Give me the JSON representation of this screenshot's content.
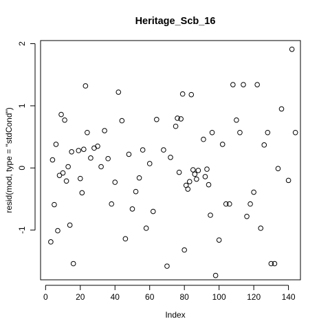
{
  "chart_data": {
    "type": "scatter",
    "title": "Heritage_Scb_16",
    "xlabel": "Index",
    "ylabel": "resid(mod, type = \"stdCond\")",
    "xlim": [
      -2.9,
      146.9
    ],
    "ylim": [
      -1.8,
      2.05
    ],
    "xticks": [
      0,
      20,
      40,
      60,
      80,
      100,
      120,
      140
    ],
    "yticks": [
      -1,
      0,
      1,
      2
    ],
    "grid": false,
    "legend": "none",
    "marker": "open-circle",
    "points": [
      {
        "x": 3,
        "y": -1.19
      },
      {
        "x": 4,
        "y": 0.13
      },
      {
        "x": 5,
        "y": -0.59
      },
      {
        "x": 6,
        "y": 0.38
      },
      {
        "x": 7,
        "y": -1.01
      },
      {
        "x": 8,
        "y": -0.12
      },
      {
        "x": 9,
        "y": 0.86
      },
      {
        "x": 10,
        "y": -0.08
      },
      {
        "x": 11,
        "y": 0.77
      },
      {
        "x": 12,
        "y": -0.21
      },
      {
        "x": 13,
        "y": 0.02
      },
      {
        "x": 14,
        "y": -0.92
      },
      {
        "x": 15,
        "y": 0.26
      },
      {
        "x": 16,
        "y": -1.54
      },
      {
        "x": 19,
        "y": 0.28
      },
      {
        "x": 20,
        "y": -0.17
      },
      {
        "x": 21,
        "y": -0.4
      },
      {
        "x": 22,
        "y": 0.3
      },
      {
        "x": 23,
        "y": 1.32
      },
      {
        "x": 24,
        "y": 0.57
      },
      {
        "x": 26,
        "y": 0.16
      },
      {
        "x": 28,
        "y": 0.32
      },
      {
        "x": 30,
        "y": 0.35
      },
      {
        "x": 32,
        "y": 0.02
      },
      {
        "x": 34,
        "y": 0.6
      },
      {
        "x": 36,
        "y": 0.15
      },
      {
        "x": 38,
        "y": -0.58
      },
      {
        "x": 40,
        "y": -0.23
      },
      {
        "x": 42,
        "y": 1.22
      },
      {
        "x": 44,
        "y": 0.76
      },
      {
        "x": 46,
        "y": -1.14
      },
      {
        "x": 48,
        "y": 0.22
      },
      {
        "x": 50,
        "y": -0.66
      },
      {
        "x": 52,
        "y": -0.38
      },
      {
        "x": 54,
        "y": -0.16
      },
      {
        "x": 56,
        "y": 0.29
      },
      {
        "x": 58,
        "y": -0.97
      },
      {
        "x": 60,
        "y": 0.07
      },
      {
        "x": 62,
        "y": -0.7
      },
      {
        "x": 64,
        "y": 0.78
      },
      {
        "x": 68,
        "y": 0.29
      },
      {
        "x": 70,
        "y": -1.58
      },
      {
        "x": 72,
        "y": 0.17
      },
      {
        "x": 75,
        "y": 0.67
      },
      {
        "x": 76,
        "y": 0.8
      },
      {
        "x": 77,
        "y": -0.07
      },
      {
        "x": 78,
        "y": 0.79
      },
      {
        "x": 79,
        "y": 1.19
      },
      {
        "x": 80,
        "y": -1.32
      },
      {
        "x": 81,
        "y": -0.28
      },
      {
        "x": 82,
        "y": -0.34
      },
      {
        "x": 83,
        "y": -0.22
      },
      {
        "x": 84,
        "y": 1.18
      },
      {
        "x": 85,
        "y": -0.03
      },
      {
        "x": 86,
        "y": -0.1
      },
      {
        "x": 87,
        "y": -0.18
      },
      {
        "x": 88,
        "y": -0.04
      },
      {
        "x": 91,
        "y": 0.46
      },
      {
        "x": 92,
        "y": -0.14
      },
      {
        "x": 93,
        "y": -0.02
      },
      {
        "x": 94,
        "y": -0.27
      },
      {
        "x": 95,
        "y": -0.76
      },
      {
        "x": 96,
        "y": 0.57
      },
      {
        "x": 98,
        "y": -1.73
      },
      {
        "x": 100,
        "y": -1.16
      },
      {
        "x": 102,
        "y": 0.38
      },
      {
        "x": 104,
        "y": -0.58
      },
      {
        "x": 106,
        "y": -0.58
      },
      {
        "x": 108,
        "y": 1.34
      },
      {
        "x": 110,
        "y": 0.77
      },
      {
        "x": 112,
        "y": 0.57
      },
      {
        "x": 114,
        "y": 1.34
      },
      {
        "x": 116,
        "y": -0.78
      },
      {
        "x": 118,
        "y": -0.58
      },
      {
        "x": 120,
        "y": -0.39
      },
      {
        "x": 122,
        "y": 1.34
      },
      {
        "x": 124,
        "y": -0.97
      },
      {
        "x": 126,
        "y": 0.37
      },
      {
        "x": 128,
        "y": 0.57
      },
      {
        "x": 130,
        "y": -1.54
      },
      {
        "x": 132,
        "y": -1.54
      },
      {
        "x": 134,
        "y": -0.01
      },
      {
        "x": 136,
        "y": 0.95
      },
      {
        "x": 140,
        "y": -0.2
      },
      {
        "x": 142,
        "y": 1.91
      },
      {
        "x": 144,
        "y": 0.57
      }
    ]
  }
}
